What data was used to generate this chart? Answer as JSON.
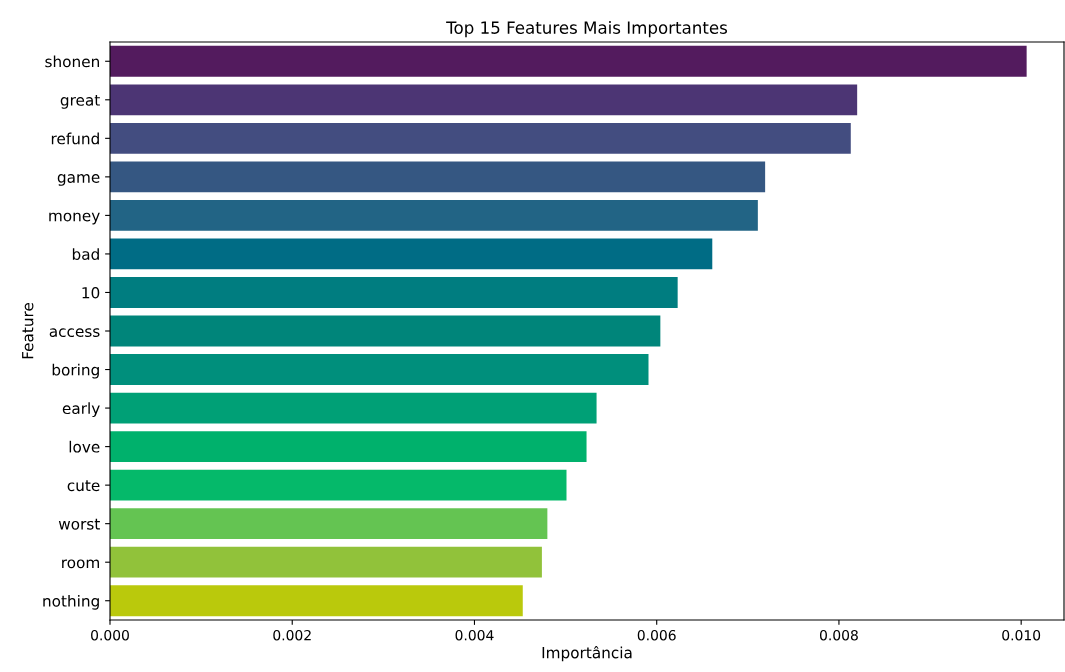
{
  "chart_data": {
    "type": "bar",
    "orientation": "horizontal",
    "title": "Top 15 Features Mais Importantes",
    "xlabel": "Importância",
    "ylabel": "Feature",
    "categories": [
      "shonen",
      "great",
      "refund",
      "game",
      "money",
      "bad",
      "10",
      "access",
      "boring",
      "early",
      "love",
      "cute",
      "worst",
      "room",
      "nothing"
    ],
    "values": [
      0.01006,
      0.0082,
      0.00813,
      0.00719,
      0.00711,
      0.00661,
      0.00623,
      0.00604,
      0.00591,
      0.00534,
      0.00523,
      0.00501,
      0.0048,
      0.00474,
      0.00453
    ],
    "colors": [
      "#531b5e",
      "#4c3574",
      "#434d80",
      "#355782",
      "#226485",
      "#006c85",
      "#007d80",
      "#00857a",
      "#008f7c",
      "#00a076",
      "#00b16c",
      "#05b96a",
      "#64c452",
      "#91c23a",
      "#bac90c"
    ],
    "xlim": [
      0,
      0.01047
    ],
    "xticks": [
      {
        "value": 0,
        "label": "0.000"
      },
      {
        "value": 0.002,
        "label": "0.002"
      },
      {
        "value": 0.004,
        "label": "0.004"
      },
      {
        "value": 0.006,
        "label": "0.006"
      },
      {
        "value": 0.008,
        "label": "0.008"
      },
      {
        "value": 0.01,
        "label": "0.010"
      }
    ],
    "grid": false,
    "legend": false
  }
}
